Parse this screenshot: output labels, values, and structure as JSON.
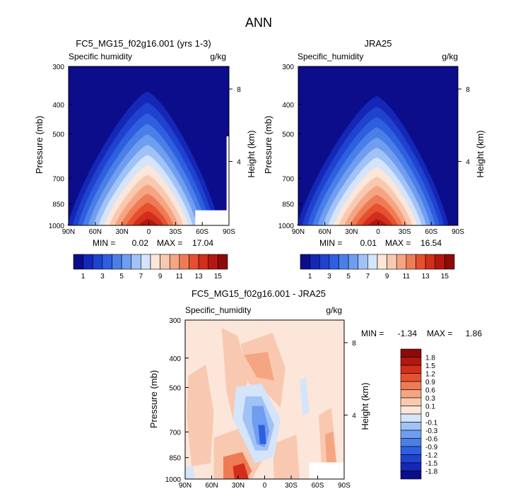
{
  "figure": {
    "title": "ANN"
  },
  "colors": {
    "abs_scale": [
      "#0c0d8a",
      "#1427b6",
      "#1f42cf",
      "#2e5fdf",
      "#4a7fe8",
      "#6f9ef0",
      "#a0c2f7",
      "#d4e4fb",
      "#fbe6d9",
      "#f8c9b0",
      "#f5a582",
      "#ef7b55",
      "#e5502f",
      "#d32d1b",
      "#b3170f",
      "#8c0a07"
    ],
    "diff_scale": [
      "#0c0d8a",
      "#1427b6",
      "#1f42cf",
      "#2e5fdf",
      "#4a7fe8",
      "#6f9ef0",
      "#a0c2f7",
      "#d4e4fb",
      "#fbe6d9",
      "#f8c9b0",
      "#f5a582",
      "#ef7b55",
      "#e5502f",
      "#d32d1b",
      "#b3170f",
      "#8c0a07"
    ]
  },
  "chart_data": [
    {
      "type": "heatmap",
      "title": "FC5_MG15_f02g16.001 (yrs 1-3)",
      "subtitle_left": "Specific humidity",
      "subtitle_right": "g/kg",
      "ylabel": "Pressure (mb)",
      "ylabel_right": "Height (km)",
      "xticks": [
        "90N",
        "60N",
        "30N",
        "0",
        "30S",
        "60S",
        "90S"
      ],
      "yticks": [
        "300",
        "400",
        "500",
        "700",
        "850",
        "1000"
      ],
      "height_ticks": [
        "8",
        "4"
      ],
      "stats": {
        "min_label": "MIN =",
        "min": "0.02",
        "max_label": "MAX =",
        "max": "17.04"
      },
      "x": [
        -90,
        90
      ],
      "pressure_range": [
        300,
        1000
      ],
      "peak": {
        "lat": 0,
        "pressure": 1000,
        "value": 17.04
      },
      "masked_region": "60S-90S near surface"
    },
    {
      "type": "heatmap",
      "title": "JRA25",
      "subtitle_left": "Specific_humidity",
      "subtitle_right": "g/kg",
      "ylabel": "Pressure (mb)",
      "ylabel_right": "Height (km)",
      "xticks": [
        "90N",
        "60N",
        "30N",
        "0",
        "30S",
        "60S",
        "90S"
      ],
      "yticks": [
        "300",
        "400",
        "500",
        "700",
        "850",
        "1000"
      ],
      "height_ticks": [
        "8",
        "4"
      ],
      "stats": {
        "min_label": "MIN =",
        "min": "0.01",
        "max_label": "MAX =",
        "max": "16.54"
      },
      "x": [
        -90,
        90
      ],
      "pressure_range": [
        300,
        1000
      ],
      "peak": {
        "lat": 0,
        "pressure": 1000,
        "value": 16.54
      }
    },
    {
      "type": "heatmap",
      "title": "FC5_MG15_f02g16.001 - JRA25",
      "subtitle_left": "Specific_humidity",
      "subtitle_right": "g/kg",
      "ylabel": "Pressure (mb)",
      "ylabel_right": "Height (km)",
      "xticks": [
        "90N",
        "60N",
        "30N",
        "0",
        "30S",
        "60S",
        "90S"
      ],
      "yticks": [
        "300",
        "400",
        "500",
        "700",
        "850",
        "1000"
      ],
      "height_ticks": [
        "8",
        "4"
      ],
      "stats": {
        "min_label": "MIN =",
        "min": "-1.34",
        "max_label": "MAX =",
        "max": "1.86"
      },
      "x": [
        -90,
        90
      ],
      "pressure_range": [
        300,
        1000
      ],
      "masked_region": "60S-90S near surface"
    }
  ],
  "colorbars": {
    "abs": {
      "labels": [
        "1",
        "3",
        "5",
        "7",
        "9",
        "11",
        "13",
        "15"
      ]
    },
    "diff": {
      "labels": [
        "1.8",
        "1.5",
        "1.2",
        "0.9",
        "0.6",
        "0.3",
        "0.1",
        "0",
        "-0.1",
        "-0.3",
        "-0.6",
        "-0.9",
        "-1.2",
        "-1.5",
        "-1.8"
      ]
    }
  }
}
